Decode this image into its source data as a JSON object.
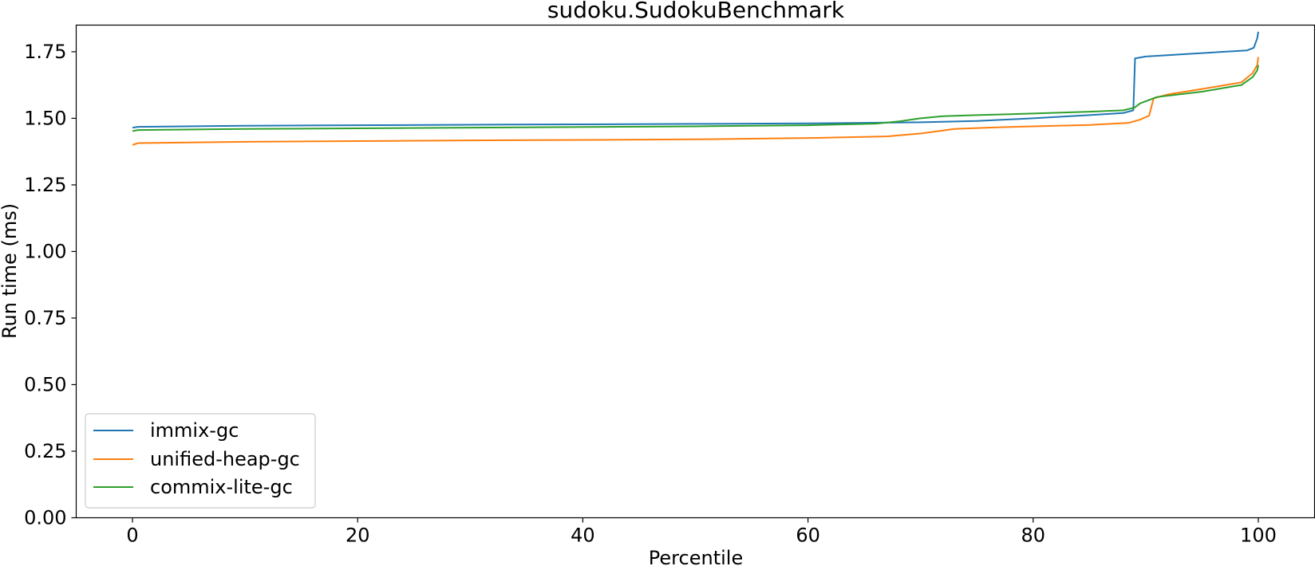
{
  "chart_data": {
    "type": "line",
    "title": "sudoku.SudokuBenchmark",
    "xlabel": "Percentile",
    "ylabel": "Run time (ms)",
    "xlim": [
      -5,
      105
    ],
    "ylim": [
      0,
      1.85
    ],
    "xticks": [
      0,
      20,
      40,
      60,
      80,
      100
    ],
    "xtick_labels": [
      "0",
      "20",
      "40",
      "60",
      "80",
      "100"
    ],
    "yticks": [
      0,
      0.25,
      0.5,
      0.75,
      1.0,
      1.25,
      1.5,
      1.75
    ],
    "ytick_labels": [
      "0.00",
      "0.25",
      "0.50",
      "0.75",
      "1.00",
      "1.25",
      "1.50",
      "1.75"
    ],
    "grid": false,
    "legend_position": "lower-left",
    "series": [
      {
        "name": "immix-gc",
        "color": "#1f77b4",
        "points": [
          [
            0,
            1.465
          ],
          [
            0.5,
            1.468
          ],
          [
            10,
            1.472
          ],
          [
            30,
            1.476
          ],
          [
            50,
            1.479
          ],
          [
            60,
            1.481
          ],
          [
            70,
            1.485
          ],
          [
            75,
            1.49
          ],
          [
            80,
            1.5
          ],
          [
            85,
            1.512
          ],
          [
            88,
            1.52
          ],
          [
            88.9,
            1.53
          ],
          [
            89.05,
            1.725
          ],
          [
            90,
            1.732
          ],
          [
            95,
            1.745
          ],
          [
            99,
            1.755
          ],
          [
            99.6,
            1.765
          ],
          [
            99.9,
            1.8
          ],
          [
            100,
            1.825
          ]
        ]
      },
      {
        "name": "unified-heap-gc",
        "color": "#ff7f0e",
        "points": [
          [
            0,
            1.4
          ],
          [
            0.5,
            1.407
          ],
          [
            10,
            1.412
          ],
          [
            30,
            1.417
          ],
          [
            50,
            1.421
          ],
          [
            60,
            1.426
          ],
          [
            67,
            1.432
          ],
          [
            70,
            1.443
          ],
          [
            73,
            1.46
          ],
          [
            76,
            1.465
          ],
          [
            80,
            1.47
          ],
          [
            85,
            1.475
          ],
          [
            88.5,
            1.483
          ],
          [
            89.5,
            1.495
          ],
          [
            90.3,
            1.51
          ],
          [
            90.7,
            1.575
          ],
          [
            92,
            1.59
          ],
          [
            95,
            1.61
          ],
          [
            98.5,
            1.635
          ],
          [
            99.5,
            1.67
          ],
          [
            99.9,
            1.7
          ],
          [
            100,
            1.73
          ]
        ]
      },
      {
        "name": "commix-lite-gc",
        "color": "#2ca02c",
        "points": [
          [
            0,
            1.452
          ],
          [
            0.5,
            1.456
          ],
          [
            10,
            1.46
          ],
          [
            30,
            1.465
          ],
          [
            50,
            1.47
          ],
          [
            60,
            1.474
          ],
          [
            66,
            1.48
          ],
          [
            68,
            1.488
          ],
          [
            70,
            1.5
          ],
          [
            72,
            1.508
          ],
          [
            75,
            1.512
          ],
          [
            80,
            1.518
          ],
          [
            85,
            1.525
          ],
          [
            88,
            1.53
          ],
          [
            89,
            1.54
          ],
          [
            89.5,
            1.556
          ],
          [
            91,
            1.58
          ],
          [
            95,
            1.6
          ],
          [
            98.5,
            1.625
          ],
          [
            99.5,
            1.655
          ],
          [
            99.9,
            1.68
          ],
          [
            100,
            1.7
          ]
        ]
      }
    ]
  }
}
